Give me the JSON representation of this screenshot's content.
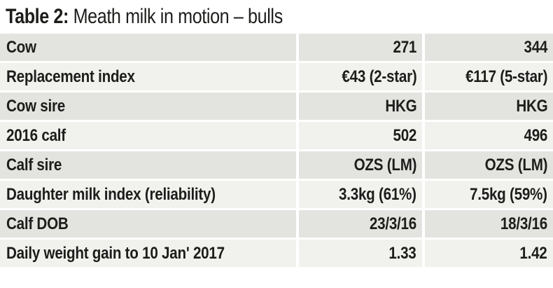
{
  "title": {
    "prefix": "Table 2:",
    "text": " Meath milk in motion – bulls"
  },
  "table": {
    "rows": [
      {
        "label": "Cow",
        "values": [
          "271",
          "344"
        ]
      },
      {
        "label": "Replacement index",
        "values": [
          "€43 (2-star)",
          "€117 (5-star)"
        ]
      },
      {
        "label": "Cow sire",
        "values": [
          "HKG",
          "HKG"
        ]
      },
      {
        "label": "2016 calf",
        "values": [
          "502",
          "496"
        ]
      },
      {
        "label": "Calf sire",
        "values": [
          "OZS (LM)",
          "OZS (LM)"
        ]
      },
      {
        "label": "Daughter milk index (reliability)",
        "values": [
          "3.3kg (61%)",
          "7.5kg (59%)"
        ]
      },
      {
        "label": "Calf DOB",
        "values": [
          "23/3/16",
          "18/3/16"
        ]
      },
      {
        "label": "Daily weight gain to 10 Jan' 2017",
        "values": [
          "1.33",
          "1.42"
        ]
      }
    ]
  },
  "colors": {
    "background": "#ffffff",
    "row_odd": "#e3e3e0",
    "row_even": "#f1f1ee",
    "text": "#1d1d1b"
  }
}
